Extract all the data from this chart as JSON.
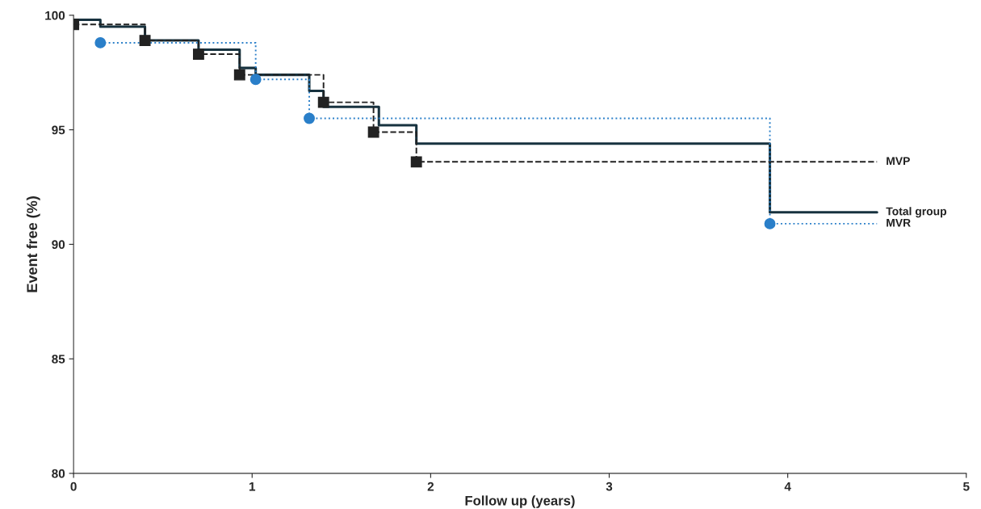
{
  "chart_data": {
    "type": "step",
    "xlabel": "Follow up (years)",
    "ylabel": "Event free (%)",
    "xlim": [
      0,
      5
    ],
    "ylim": [
      80,
      100
    ],
    "xticks": [
      0,
      1,
      2,
      3,
      4,
      5
    ],
    "yticks": [
      80,
      85,
      90,
      95,
      100
    ],
    "grid": false,
    "legend": false,
    "series": [
      {
        "name": "Total group",
        "color": "#17323f",
        "line_style": "solid",
        "marker": "none",
        "x": [
          0,
          0.15,
          0.4,
          0.7,
          0.93,
          1.02,
          1.32,
          1.4,
          1.71,
          1.92,
          3.9,
          4.5
        ],
        "values": [
          99.8,
          99.5,
          98.9,
          98.5,
          97.7,
          97.4,
          96.7,
          96.0,
          95.2,
          94.4,
          91.4,
          91.4
        ]
      },
      {
        "name": "MVP",
        "color": "#222222",
        "line_style": "dashed",
        "marker": "square",
        "x": [
          0,
          0.4,
          0.7,
          0.93,
          1.4,
          1.68,
          1.92,
          4.5
        ],
        "values": [
          99.6,
          98.9,
          98.3,
          97.4,
          96.2,
          94.9,
          93.6,
          93.6
        ]
      },
      {
        "name": "MVR",
        "color": "#2a7fc9",
        "line_style": "dotted",
        "marker": "circle",
        "x": [
          0.15,
          1.02,
          1.32,
          3.9,
          4.5
        ],
        "values": [
          98.8,
          97.2,
          95.5,
          90.9,
          90.9
        ]
      }
    ]
  }
}
